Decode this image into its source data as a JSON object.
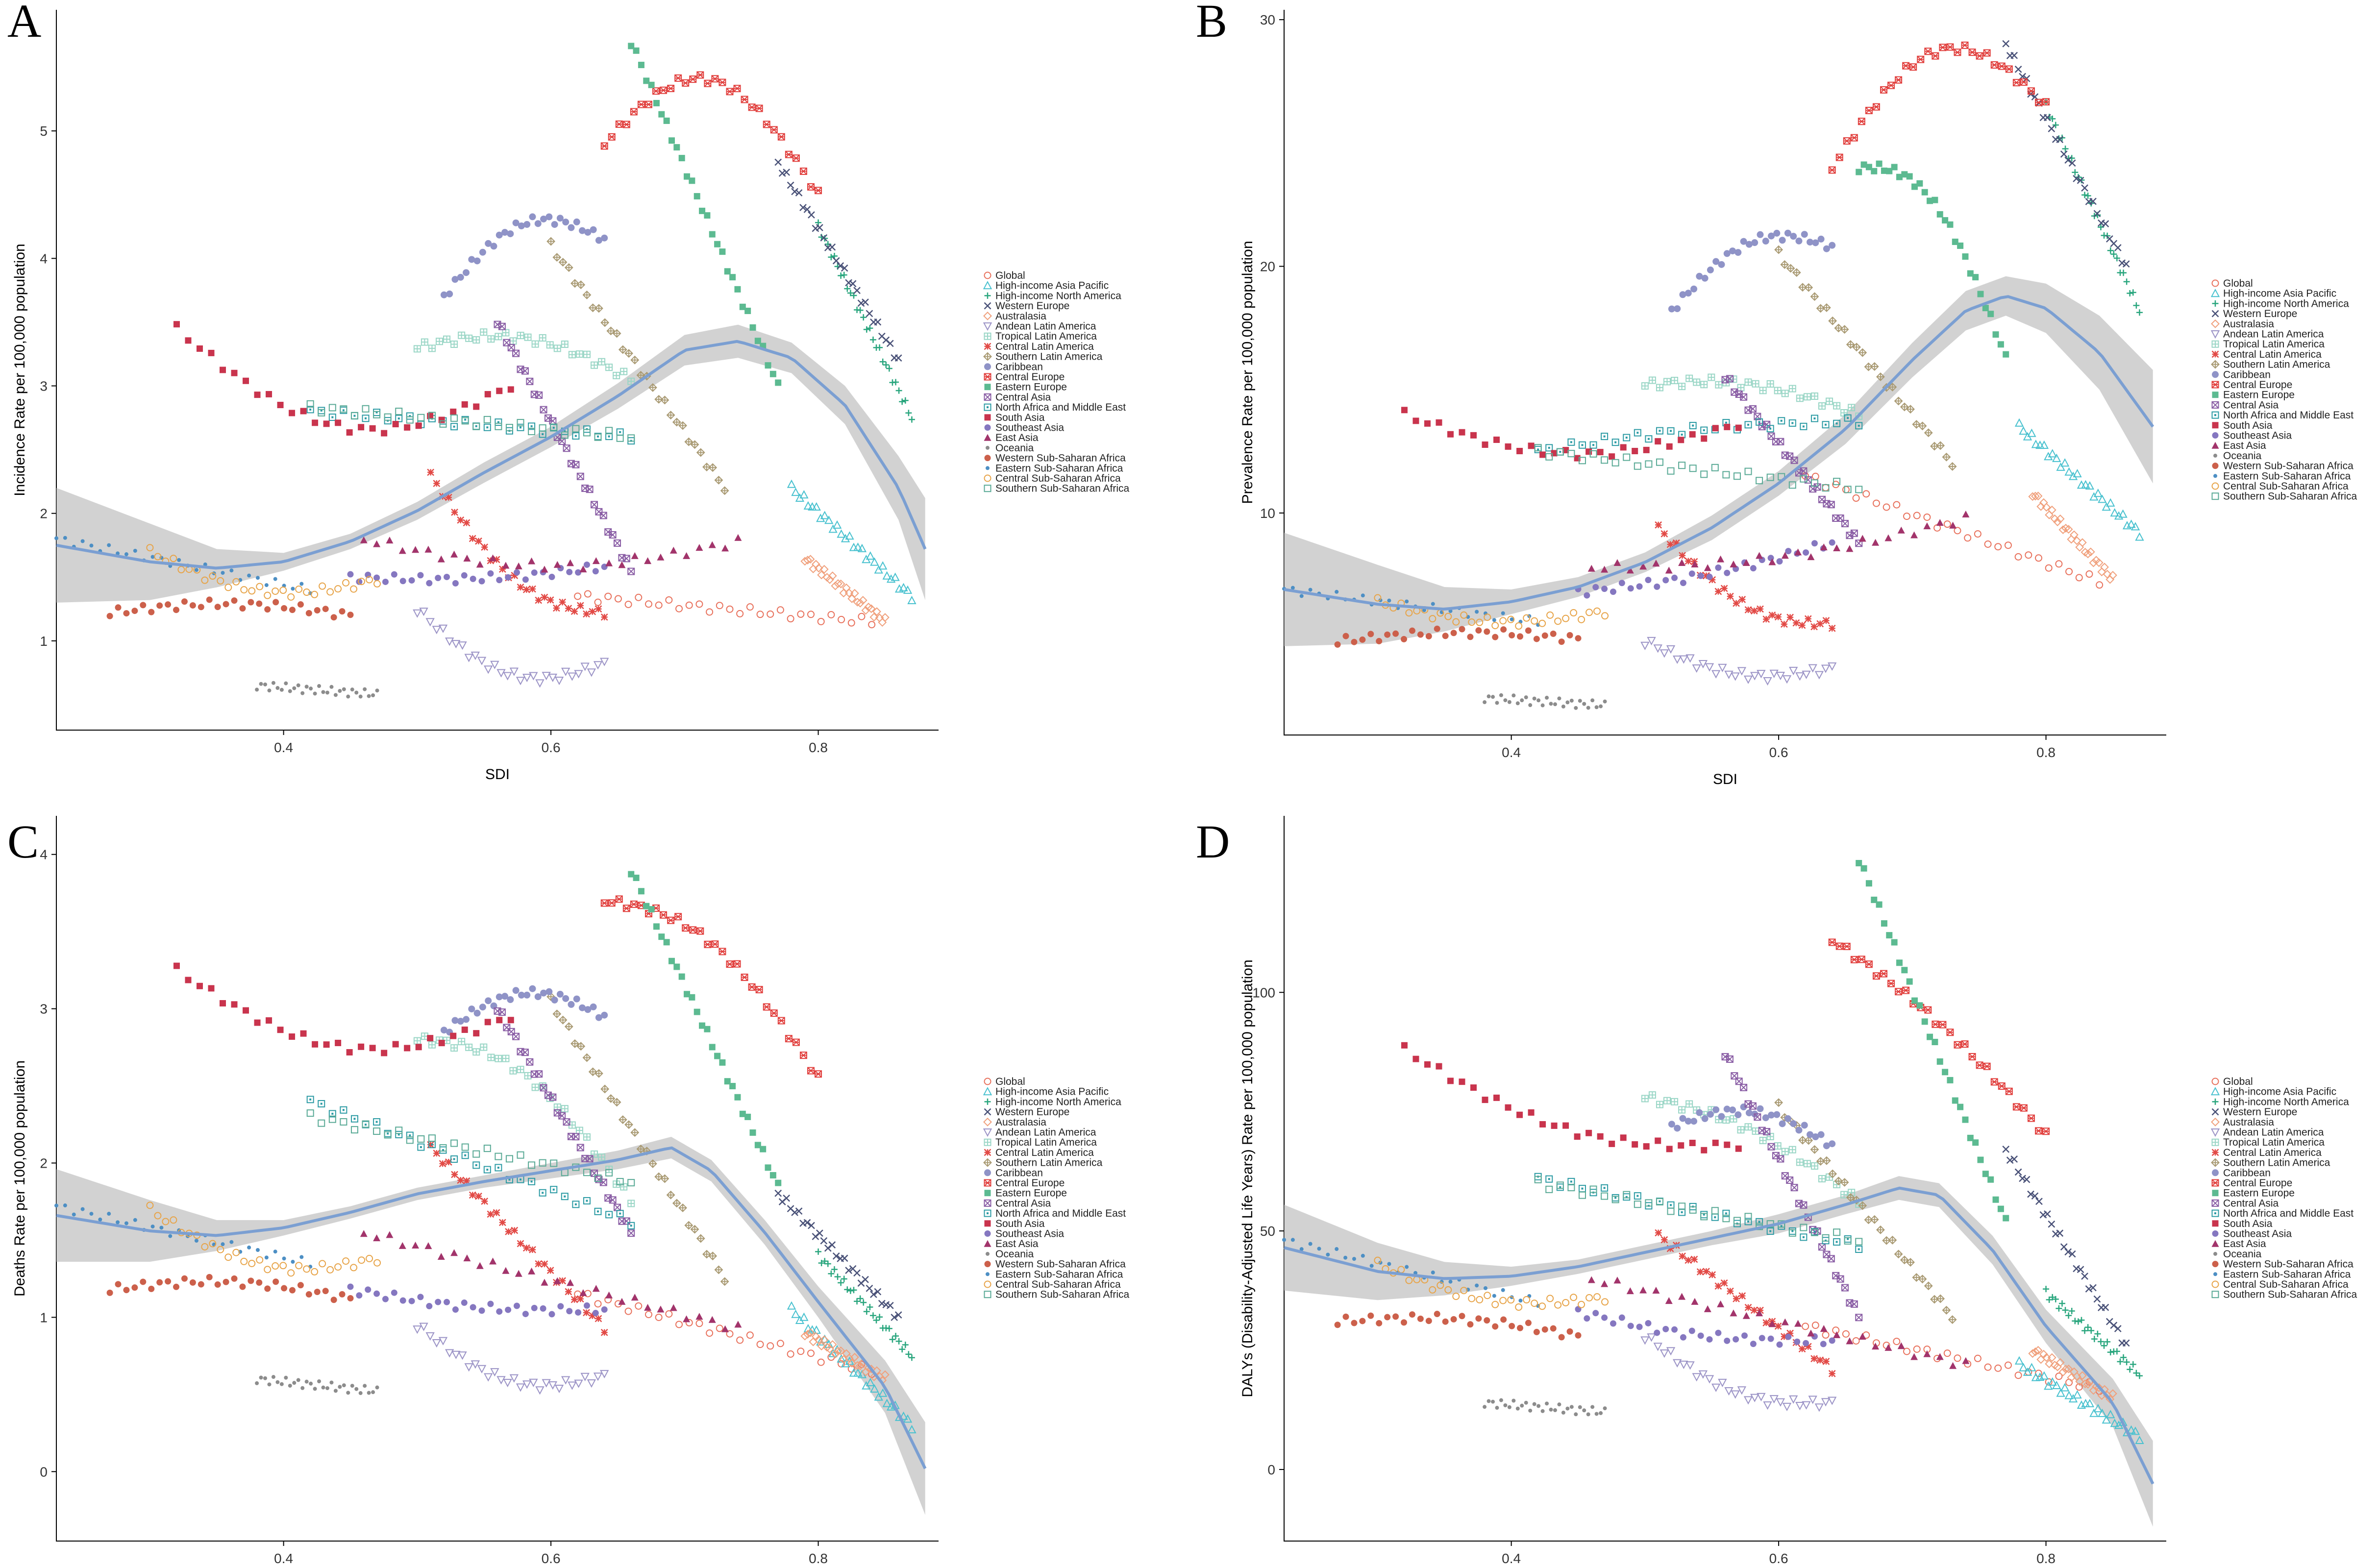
{
  "figure": {
    "x_label": "SDI",
    "x_ticks": [
      "0.4",
      "0.6",
      "0.8"
    ],
    "xlim": [
      0.23,
      0.89
    ]
  },
  "regions": [
    {
      "name": "Global",
      "symbol": "circle-open",
      "color": "#e8715c",
      "sdi_range": [
        0.62,
        0.84
      ]
    },
    {
      "name": "High-income Asia Pacific",
      "symbol": "triangle-open",
      "color": "#48c1cf",
      "sdi_range": [
        0.78,
        0.87
      ]
    },
    {
      "name": "High-income North America",
      "symbol": "plus",
      "color": "#2aa67e",
      "sdi_range": [
        0.8,
        0.87
      ]
    },
    {
      "name": "Western Europe",
      "symbol": "cross",
      "color": "#4a5278",
      "sdi_range": [
        0.77,
        0.86
      ]
    },
    {
      "name": "Australasia",
      "symbol": "diamond-open",
      "color": "#f0a07c",
      "sdi_range": [
        0.79,
        0.85
      ]
    },
    {
      "name": "Andean Latin America",
      "symbol": "triangle-down-open",
      "color": "#9b93c6",
      "sdi_range": [
        0.5,
        0.64
      ]
    },
    {
      "name": "Tropical Latin America",
      "symbol": "square-cross",
      "color": "#9ad6c6",
      "sdi_range": [
        0.5,
        0.66
      ]
    },
    {
      "name": "Central Latin America",
      "symbol": "asterisk",
      "color": "#e24a46",
      "sdi_range": [
        0.51,
        0.64
      ]
    },
    {
      "name": "Southern Latin America",
      "symbol": "diamond-plus",
      "color": "#a99a73",
      "sdi_range": [
        0.6,
        0.73
      ]
    },
    {
      "name": "Caribbean",
      "symbol": "hexagon",
      "color": "#8f93c7",
      "sdi_range": [
        0.52,
        0.64
      ]
    },
    {
      "name": "Central Europe",
      "symbol": "star-square",
      "color": "#e1403e",
      "sdi_range": [
        0.64,
        0.8
      ]
    },
    {
      "name": "Eastern Europe",
      "symbol": "square",
      "color": "#5cba91",
      "sdi_range": [
        0.66,
        0.77
      ]
    },
    {
      "name": "Central Asia",
      "symbol": "square-x",
      "color": "#8a5ea5",
      "sdi_range": [
        0.56,
        0.66
      ]
    },
    {
      "name": "North Africa and Middle East",
      "symbol": "square-dot",
      "color": "#2c9ba4",
      "sdi_range": [
        0.42,
        0.66
      ]
    },
    {
      "name": "South Asia",
      "symbol": "filled-square",
      "color": "#c9344d",
      "sdi_range": [
        0.32,
        0.57
      ]
    },
    {
      "name": "Southeast Asia",
      "symbol": "filled-circle",
      "color": "#8577c0",
      "sdi_range": [
        0.45,
        0.64
      ]
    },
    {
      "name": "East Asia",
      "symbol": "filled-triangle",
      "color": "#a2346b",
      "sdi_range": [
        0.46,
        0.74
      ]
    },
    {
      "name": "Oceania",
      "symbol": "dot",
      "color": "#8c8c8c",
      "sdi_range": [
        0.38,
        0.47
      ]
    },
    {
      "name": "Western Sub-Saharan Africa",
      "symbol": "filled-circle",
      "color": "#cc604b",
      "sdi_range": [
        0.27,
        0.45
      ]
    },
    {
      "name": "Eastern Sub-Saharan Africa",
      "symbol": "dot",
      "color": "#4d8fc4",
      "sdi_range": [
        0.23,
        0.42
      ]
    },
    {
      "name": "Central Sub-Saharan Africa",
      "symbol": "circle-open",
      "color": "#e7a449",
      "sdi_range": [
        0.3,
        0.47
      ]
    },
    {
      "name": "Southern Sub-Saharan Africa",
      "symbol": "square-open",
      "color": "#5aaa96",
      "sdi_range": [
        0.42,
        0.66
      ]
    }
  ],
  "chart_data": [
    {
      "type": "scatter",
      "panel": "A",
      "title": "",
      "xlabel": "SDI",
      "ylabel": "Incidence Rate per 100,000 population",
      "xlim": [
        0.23,
        0.89
      ],
      "ylim": [
        0.3,
        5.95
      ],
      "yticks": [
        "1",
        "2",
        "3",
        "4",
        "5"
      ],
      "yticks_values": [
        1,
        2,
        3,
        4,
        5
      ],
      "series_trend": [
        [
          0.23,
          1.75
        ],
        [
          0.3,
          1.62
        ],
        [
          0.35,
          1.57
        ],
        [
          0.4,
          1.62
        ],
        [
          0.45,
          1.78
        ],
        [
          0.5,
          2.02
        ],
        [
          0.55,
          2.32
        ],
        [
          0.6,
          2.6
        ],
        [
          0.65,
          2.92
        ],
        [
          0.7,
          3.28
        ],
        [
          0.74,
          3.35
        ],
        [
          0.78,
          3.22
        ],
        [
          0.82,
          2.85
        ],
        [
          0.86,
          2.2
        ],
        [
          0.88,
          1.72
        ]
      ],
      "band_half_width": [
        0.45,
        0.3,
        0.15,
        0.07,
        0.06,
        0.07,
        0.08,
        0.08,
        0.1,
        0.12,
        0.13,
        0.12,
        0.15,
        0.25,
        0.4
      ],
      "regions": [
        {
          "start": 1.35,
          "end": 1.15,
          "shape": "linear",
          "amp": 0
        },
        {
          "start": 2.2,
          "end": 1.35,
          "shape": "linear",
          "amp": 0
        },
        {
          "start": 4.25,
          "end": 2.75,
          "shape": "linear",
          "amp": 0
        },
        {
          "start": 4.75,
          "end": 3.2,
          "shape": "linear",
          "amp": 0
        },
        {
          "start": 1.65,
          "end": 1.15,
          "shape": "linear",
          "amp": 0
        },
        {
          "start": 1.25,
          "end": 0.82,
          "shape": "dip",
          "amp": -0.3
        },
        {
          "start": 3.3,
          "end": 3.05,
          "shape": "hump",
          "amp": 0.2
        },
        {
          "start": 2.3,
          "end": 1.22,
          "shape": "dip",
          "amp": -0.3
        },
        {
          "start": 4.1,
          "end": 2.2,
          "shape": "linear",
          "amp": 0
        },
        {
          "start": 3.7,
          "end": 4.15,
          "shape": "hump",
          "amp": 0.35
        },
        {
          "start": 4.9,
          "end": 4.5,
          "shape": "hump",
          "amp": 0.7
        },
        {
          "start": 5.7,
          "end": 3.0,
          "shape": "linear",
          "amp": 0
        },
        {
          "start": 3.5,
          "end": 1.55,
          "shape": "linear",
          "amp": 0
        },
        {
          "start": 2.8,
          "end": 2.6,
          "shape": "linear",
          "amp": 0
        },
        {
          "start": 3.45,
          "end": 3.0,
          "shape": "dip",
          "amp": -0.55
        },
        {
          "start": 1.5,
          "end": 1.58,
          "shape": "dip",
          "amp": -0.05
        },
        {
          "start": 1.8,
          "end": 1.78,
          "shape": "dip",
          "amp": -0.2
        },
        {
          "start": 0.65,
          "end": 0.58,
          "shape": "linear",
          "amp": 0
        },
        {
          "start": 1.22,
          "end": 1.2,
          "shape": "hump",
          "amp": 0.08
        },
        {
          "start": 1.8,
          "end": 1.4,
          "shape": "linear",
          "amp": 0
        },
        {
          "start": 1.7,
          "end": 1.48,
          "shape": "dip",
          "amp": -0.2
        },
        {
          "start": 2.83,
          "end": 2.6,
          "shape": "linear",
          "amp": 0
        }
      ]
    },
    {
      "type": "scatter",
      "panel": "B",
      "title": "",
      "xlabel": "SDI",
      "ylabel": "Prevalence Rate per 100,000 population",
      "xlim": [
        0.23,
        0.89
      ],
      "ylim": [
        1.0,
        30.4
      ],
      "yticks": [
        "10",
        "20",
        "30"
      ],
      "yticks_values": [
        10,
        20,
        30
      ],
      "series_trend": [
        [
          0.23,
          6.9
        ],
        [
          0.3,
          6.3
        ],
        [
          0.35,
          6.1
        ],
        [
          0.4,
          6.4
        ],
        [
          0.45,
          7.0
        ],
        [
          0.5,
          8.0
        ],
        [
          0.55,
          9.4
        ],
        [
          0.6,
          11.2
        ],
        [
          0.65,
          13.4
        ],
        [
          0.7,
          16.2
        ],
        [
          0.74,
          18.2
        ],
        [
          0.77,
          18.8
        ],
        [
          0.8,
          18.3
        ],
        [
          0.84,
          16.5
        ],
        [
          0.88,
          13.5
        ]
      ],
      "band_half_width": [
        2.3,
        1.6,
        0.9,
        0.5,
        0.4,
        0.4,
        0.5,
        0.5,
        0.6,
        0.7,
        0.8,
        0.8,
        1.0,
        1.5,
        2.3
      ],
      "regions": [
        {
          "start": 11.5,
          "end": 7.2,
          "shape": "linear",
          "amp": 0
        },
        {
          "start": 13.5,
          "end": 9.2,
          "shape": "linear",
          "amp": 0
        },
        {
          "start": 26.5,
          "end": 18.2,
          "shape": "linear",
          "amp": 0
        },
        {
          "start": 29.0,
          "end": 20.0,
          "shape": "linear",
          "amp": 0
        },
        {
          "start": 10.8,
          "end": 7.3,
          "shape": "linear",
          "amp": 0
        },
        {
          "start": 4.8,
          "end": 3.7,
          "shape": "dip",
          "amp": -0.8
        },
        {
          "start": 15.2,
          "end": 14.0,
          "shape": "hump",
          "amp": 0.6
        },
        {
          "start": 9.4,
          "end": 5.5,
          "shape": "dip",
          "amp": -1.2
        },
        {
          "start": 20.5,
          "end": 12.0,
          "shape": "linear",
          "amp": 0
        },
        {
          "start": 18.2,
          "end": 20.8,
          "shape": "hump",
          "amp": 1.5
        },
        {
          "start": 24.0,
          "end": 26.5,
          "shape": "hump",
          "amp": 3.5
        },
        {
          "start": 24.0,
          "end": 16.3,
          "shape": "hump",
          "amp": 2.5
        },
        {
          "start": 15.5,
          "end": 8.8,
          "shape": "linear",
          "amp": 0
        },
        {
          "start": 12.5,
          "end": 13.7,
          "shape": "hump",
          "amp": 0.3
        },
        {
          "start": 14.0,
          "end": 13.6,
          "shape": "dip",
          "amp": -1.4
        },
        {
          "start": 6.8,
          "end": 8.8,
          "shape": "dip",
          "amp": -0.3
        },
        {
          "start": 7.8,
          "end": 9.8,
          "shape": "dip",
          "amp": -0.6
        },
        {
          "start": 2.5,
          "end": 2.2,
          "shape": "linear",
          "amp": 0
        },
        {
          "start": 4.8,
          "end": 4.9,
          "shape": "hump",
          "amp": 0.3
        },
        {
          "start": 6.9,
          "end": 5.6,
          "shape": "linear",
          "amp": 0
        },
        {
          "start": 6.4,
          "end": 6.0,
          "shape": "dip",
          "amp": -0.6
        },
        {
          "start": 12.5,
          "end": 11.0,
          "shape": "linear",
          "amp": 0
        }
      ]
    },
    {
      "type": "scatter",
      "panel": "C",
      "title": "",
      "xlabel": "SDI",
      "ylabel": "Deaths Rate per 100,000 population",
      "xlim": [
        0.23,
        0.89
      ],
      "ylim": [
        -0.45,
        4.25
      ],
      "yticks": [
        "0",
        "1",
        "2",
        "3",
        "4"
      ],
      "yticks_values": [
        0,
        1,
        2,
        3,
        4
      ],
      "series_trend": [
        [
          0.23,
          1.66
        ],
        [
          0.3,
          1.56
        ],
        [
          0.35,
          1.53
        ],
        [
          0.4,
          1.58
        ],
        [
          0.45,
          1.68
        ],
        [
          0.5,
          1.8
        ],
        [
          0.55,
          1.88
        ],
        [
          0.6,
          1.95
        ],
        [
          0.65,
          2.02
        ],
        [
          0.69,
          2.1
        ],
        [
          0.72,
          1.95
        ],
        [
          0.76,
          1.55
        ],
        [
          0.8,
          1.1
        ],
        [
          0.85,
          0.55
        ],
        [
          0.88,
          0.02
        ]
      ],
      "band_half_width": [
        0.3,
        0.2,
        0.1,
        0.05,
        0.04,
        0.04,
        0.04,
        0.05,
        0.06,
        0.07,
        0.07,
        0.08,
        0.1,
        0.17,
        0.3
      ],
      "regions": [
        {
          "start": 1.15,
          "end": 0.65,
          "shape": "linear",
          "amp": 0
        },
        {
          "start": 1.05,
          "end": 0.3,
          "shape": "linear",
          "amp": 0
        },
        {
          "start": 1.4,
          "end": 0.75,
          "shape": "linear",
          "amp": 0
        },
        {
          "start": 1.8,
          "end": 1.0,
          "shape": "linear",
          "amp": 0
        },
        {
          "start": 0.9,
          "end": 0.6,
          "shape": "linear",
          "amp": 0
        },
        {
          "start": 0.95,
          "end": 0.62,
          "shape": "dip",
          "amp": -0.2
        },
        {
          "start": 2.8,
          "end": 1.75,
          "shape": "hump",
          "amp": 0.3
        },
        {
          "start": 2.1,
          "end": 0.93,
          "shape": "linear",
          "amp": 0
        },
        {
          "start": 3.05,
          "end": 1.25,
          "shape": "linear",
          "amp": 0
        },
        {
          "start": 2.85,
          "end": 2.95,
          "shape": "hump",
          "amp": 0.2
        },
        {
          "start": 3.7,
          "end": 2.55,
          "shape": "hump",
          "amp": 0.3
        },
        {
          "start": 3.9,
          "end": 1.85,
          "shape": "linear",
          "amp": 0
        },
        {
          "start": 3.0,
          "end": 1.55,
          "shape": "linear",
          "amp": 0
        },
        {
          "start": 2.4,
          "end": 1.62,
          "shape": "linear",
          "amp": 0
        },
        {
          "start": 3.25,
          "end": 2.95,
          "shape": "dip",
          "amp": -0.35
        },
        {
          "start": 1.18,
          "end": 1.05,
          "shape": "dip",
          "amp": -0.05
        },
        {
          "start": 1.55,
          "end": 0.93,
          "shape": "linear",
          "amp": 0
        },
        {
          "start": 0.6,
          "end": 0.52,
          "shape": "linear",
          "amp": 0
        },
        {
          "start": 1.18,
          "end": 1.12,
          "shape": "hump",
          "amp": 0.08
        },
        {
          "start": 1.72,
          "end": 1.35,
          "shape": "linear",
          "amp": 0
        },
        {
          "start": 1.7,
          "end": 1.38,
          "shape": "dip",
          "amp": -0.2
        },
        {
          "start": 2.3,
          "end": 1.88,
          "shape": "linear",
          "amp": 0
        }
      ]
    },
    {
      "type": "scatter",
      "panel": "D",
      "title": "",
      "xlabel": "SDI",
      "ylabel": "DALYs (Disability-Adjusted Life Years) Rate per 100,000 population",
      "xlim": [
        0.23,
        0.89
      ],
      "ylim": [
        -15,
        137
      ],
      "yticks": [
        "0",
        "50",
        "100"
      ],
      "yticks_values": [
        0,
        50,
        100
      ],
      "series_trend": [
        [
          0.23,
          46.5
        ],
        [
          0.3,
          41.5
        ],
        [
          0.35,
          40.0
        ],
        [
          0.4,
          40.5
        ],
        [
          0.45,
          42.5
        ],
        [
          0.5,
          45.5
        ],
        [
          0.55,
          48.5
        ],
        [
          0.6,
          51.5
        ],
        [
          0.65,
          55.5
        ],
        [
          0.69,
          59.0
        ],
        [
          0.72,
          57.5
        ],
        [
          0.76,
          46.0
        ],
        [
          0.8,
          30.0
        ],
        [
          0.85,
          14.0
        ],
        [
          0.88,
          -3.0
        ]
      ],
      "band_half_width": [
        9,
        6,
        3.5,
        2,
        1.5,
        1.5,
        1.5,
        2,
        2,
        2.5,
        2.5,
        3,
        3.5,
        5,
        9
      ],
      "regions": [
        {
          "start": 30.0,
          "end": 17.0,
          "shape": "linear",
          "amp": 0
        },
        {
          "start": 22.0,
          "end": 7.0,
          "shape": "linear",
          "amp": 0
        },
        {
          "start": 37.0,
          "end": 20.0,
          "shape": "linear",
          "amp": 0
        },
        {
          "start": 67.0,
          "end": 26.0,
          "shape": "linear",
          "amp": 0
        },
        {
          "start": 25.0,
          "end": 15.0,
          "shape": "linear",
          "amp": 0
        },
        {
          "start": 28.0,
          "end": 14.0,
          "shape": "dip",
          "amp": -5
        },
        {
          "start": 78.0,
          "end": 56.0,
          "shape": "hump",
          "amp": 4
        },
        {
          "start": 49.0,
          "end": 21.0,
          "shape": "linear",
          "amp": 0
        },
        {
          "start": 76.0,
          "end": 32.0,
          "shape": "linear",
          "amp": 0
        },
        {
          "start": 72.0,
          "end": 68.0,
          "shape": "hump",
          "amp": 5
        },
        {
          "start": 111.0,
          "end": 70.0,
          "shape": "hump",
          "amp": 3
        },
        {
          "start": 128.0,
          "end": 52.0,
          "shape": "linear",
          "amp": 0
        },
        {
          "start": 87.0,
          "end": 32.0,
          "shape": "linear",
          "amp": 0
        },
        {
          "start": 61.0,
          "end": 47.0,
          "shape": "linear",
          "amp": 0
        },
        {
          "start": 88.0,
          "end": 68.0,
          "shape": "dip",
          "amp": -7
        },
        {
          "start": 33.0,
          "end": 27.0,
          "shape": "dip",
          "amp": -2
        },
        {
          "start": 40.0,
          "end": 22.0,
          "shape": "linear",
          "amp": 0
        },
        {
          "start": 14.0,
          "end": 12.0,
          "shape": "linear",
          "amp": 0
        },
        {
          "start": 31.0,
          "end": 28.0,
          "shape": "hump",
          "amp": 2
        },
        {
          "start": 48.0,
          "end": 35.0,
          "shape": "linear",
          "amp": 0
        },
        {
          "start": 43.0,
          "end": 36.0,
          "shape": "dip",
          "amp": -4
        },
        {
          "start": 60.0,
          "end": 48.0,
          "shape": "linear",
          "amp": 0
        }
      ]
    }
  ]
}
